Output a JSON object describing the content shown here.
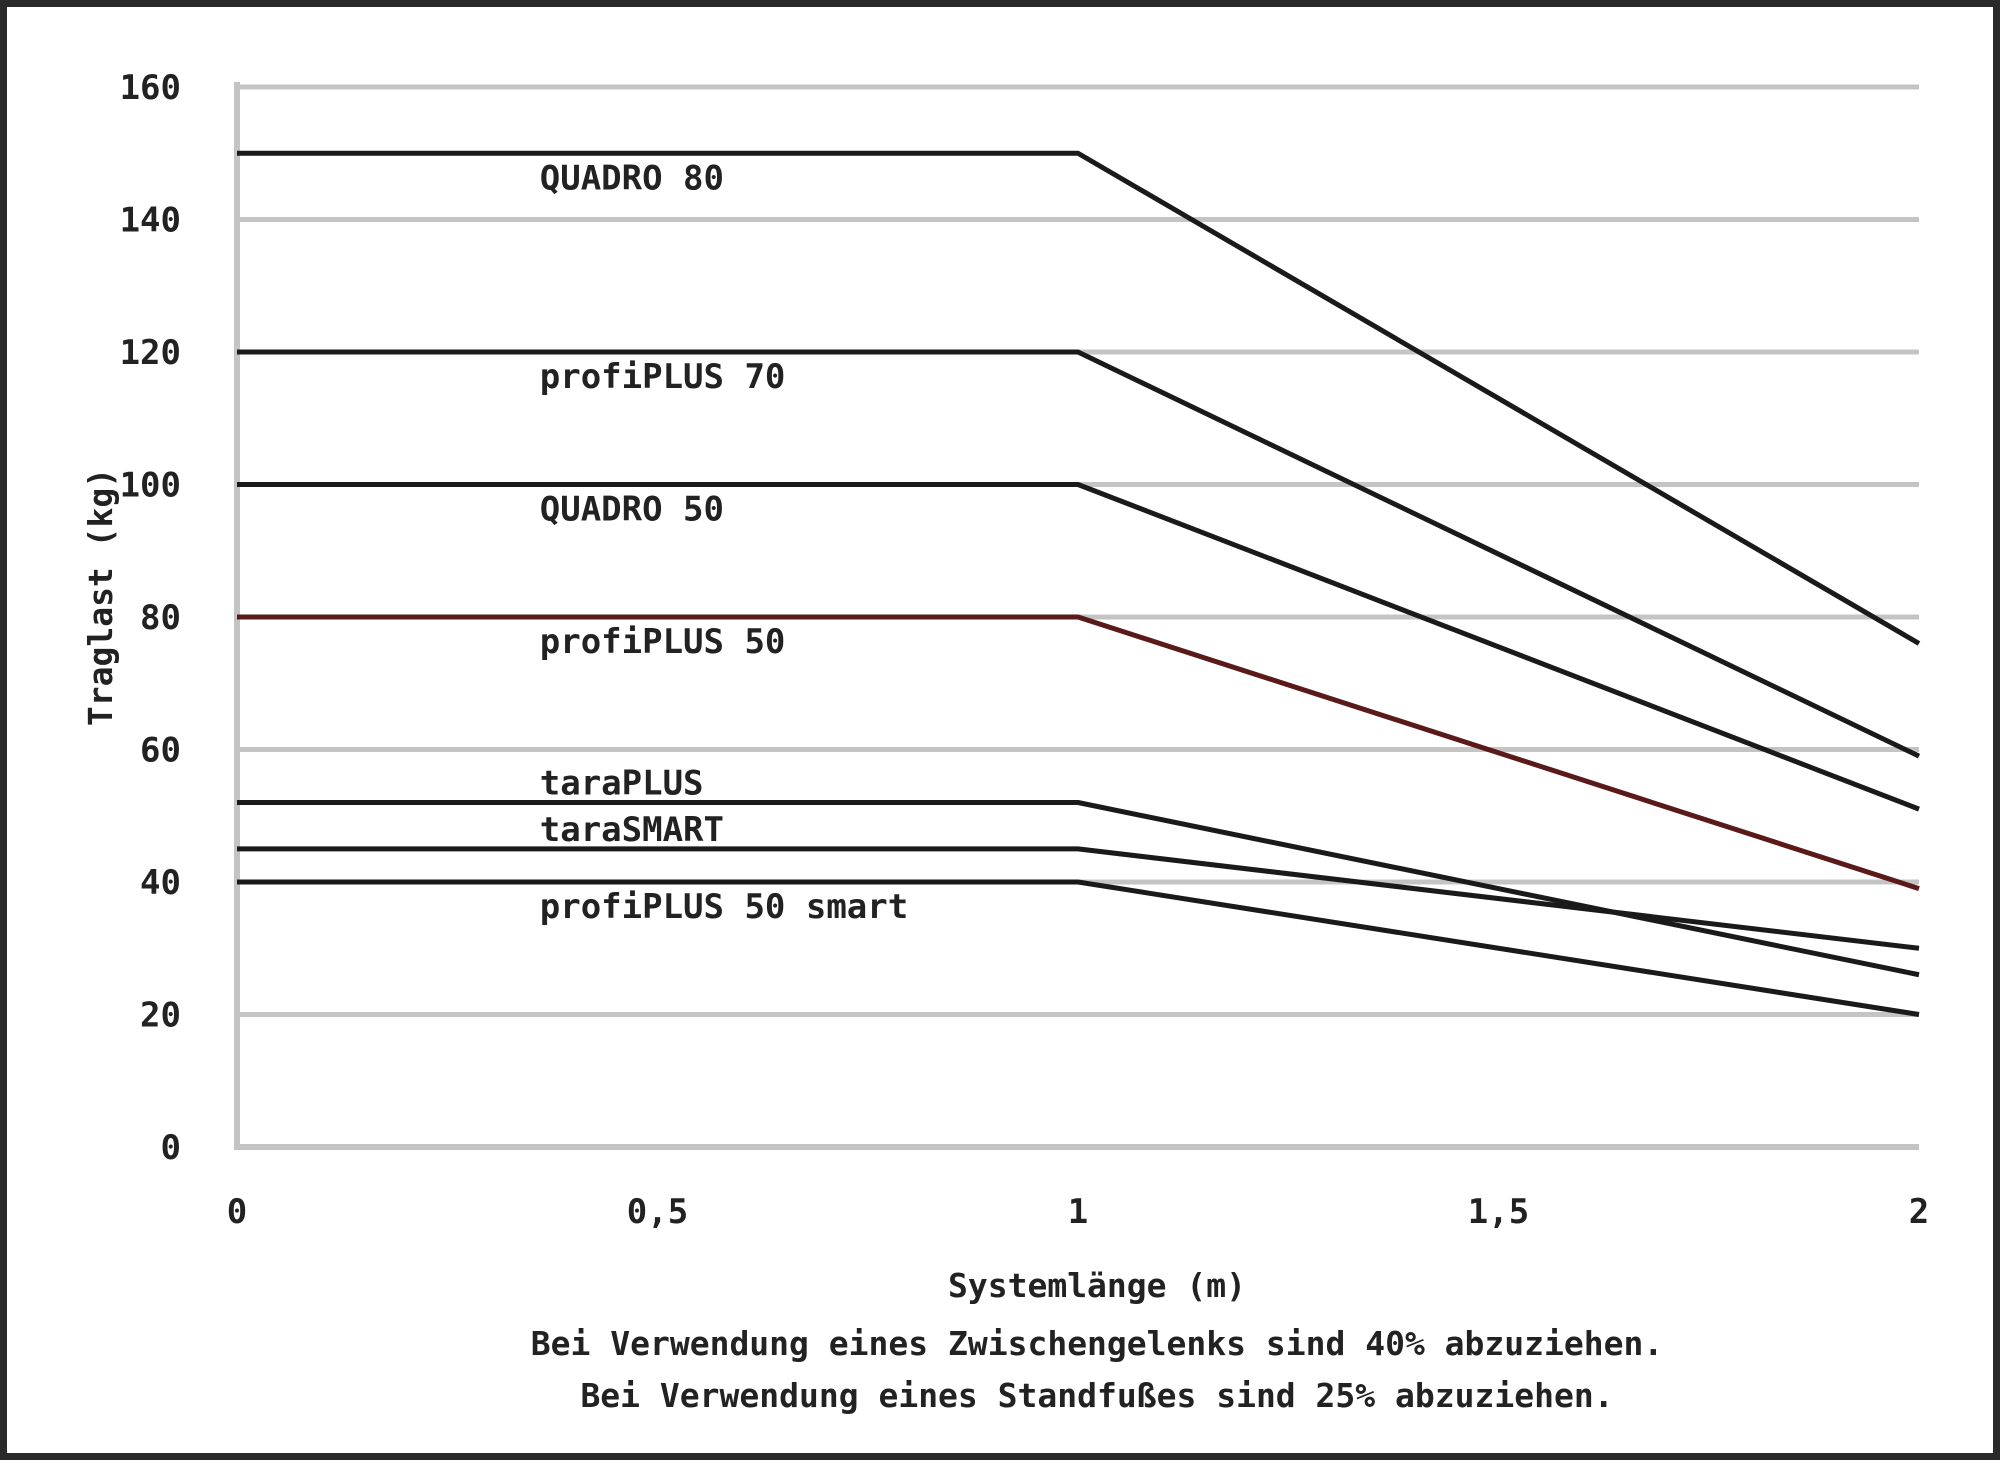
{
  "chart_data": {
    "type": "line",
    "xlabel": "Systemlänge (m)",
    "ylabel": "Traglast (kg)",
    "xlim": [
      0,
      2
    ],
    "ylim": [
      0,
      160
    ],
    "x_ticks": [
      0,
      0.5,
      1,
      1.5,
      2
    ],
    "x_tick_labels": [
      "0",
      "0,5",
      "1",
      "1,5",
      "2"
    ],
    "y_ticks": [
      0,
      20,
      40,
      60,
      80,
      100,
      120,
      140,
      160
    ],
    "y_tick_labels": [
      "0",
      "20",
      "40",
      "60",
      "80",
      "100",
      "120",
      "140",
      "160"
    ],
    "grid": "horizontal",
    "legend": "inline labels",
    "series": [
      {
        "name": "QUADRO 80",
        "x": [
          0,
          1,
          2
        ],
        "y": [
          150,
          150,
          76
        ],
        "color": "#1a1a1a"
      },
      {
        "name": "profiPLUS 70",
        "x": [
          0,
          1,
          2
        ],
        "y": [
          120,
          120,
          59
        ],
        "color": "#1a1a1a"
      },
      {
        "name": "QUADRO 50",
        "x": [
          0,
          1,
          2
        ],
        "y": [
          100,
          100,
          51
        ],
        "color": "#1a1a1a"
      },
      {
        "name": "profiPLUS 50",
        "x": [
          0,
          1,
          2
        ],
        "y": [
          80,
          80,
          39
        ],
        "color": "#5a1a1a"
      },
      {
        "name": "taraPLUS",
        "x": [
          0,
          1,
          2
        ],
        "y": [
          52,
          52,
          26
        ],
        "color": "#1a1a1a"
      },
      {
        "name": "taraSMART",
        "x": [
          0,
          1,
          2
        ],
        "y": [
          45,
          45,
          30
        ],
        "color": "#1a1a1a"
      },
      {
        "name": "profiPLUS 50 smart",
        "x": [
          0,
          1,
          2
        ],
        "y": [
          40,
          40,
          20
        ],
        "color": "#1a1a1a"
      }
    ],
    "annotations": [
      "Bei Verwendung eines Zwischengelenks sind 40% abzuziehen.",
      "Bei Verwendung eines Standfußes sind 25% abzuziehen."
    ]
  }
}
